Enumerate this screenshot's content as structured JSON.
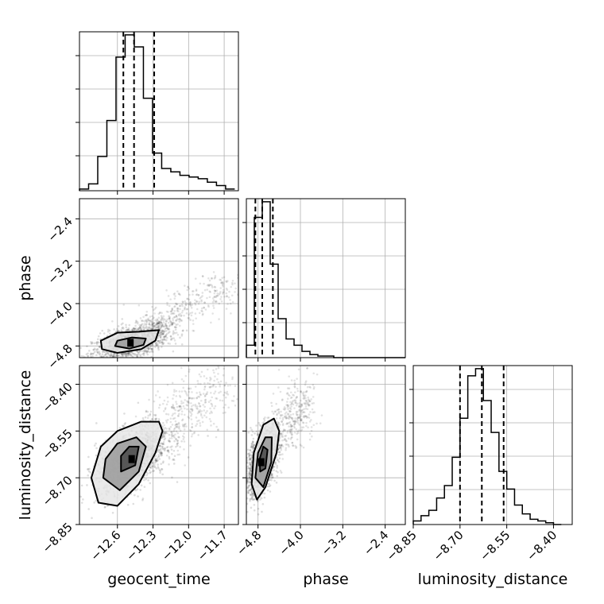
{
  "chart_data": {
    "type": "corner",
    "parameters": [
      "geocent_time",
      "phase",
      "luminosity_distance"
    ],
    "axis_labels": {
      "geocent_time": "geocent_time",
      "phase": "phase",
      "luminosity_distance": "luminosity_distance"
    },
    "ranges": {
      "geocent_time": [
        -12.92,
        -11.58
      ],
      "phase": [
        -5.02,
        -2.02
      ],
      "luminosity_distance": [
        -8.85,
        -8.34
      ]
    },
    "ticks": {
      "geocent_time": {
        "values": [
          -12.6,
          -12.3,
          -12.0,
          -11.7
        ],
        "labels": [
          "−12.6",
          "−12.3",
          "−12.0",
          "−11.7"
        ]
      },
      "phase": {
        "values": [
          -4.8,
          -4.0,
          -3.2,
          -2.4
        ],
        "labels": [
          "−4.8",
          "−4.0",
          "−3.2",
          "−2.4"
        ]
      },
      "luminosity_distance": {
        "values": [
          -8.85,
          -8.7,
          -8.55,
          -8.4
        ],
        "labels": [
          "−8.85",
          "−8.70",
          "−8.55",
          "−8.40"
        ]
      }
    },
    "grid": true,
    "histograms": [
      {
        "parameter": "geocent_time",
        "bin_edges": [
          -12.92,
          -12.843,
          -12.766,
          -12.689,
          -12.612,
          -12.535,
          -12.458,
          -12.381,
          -12.304,
          -12.227,
          -12.15,
          -12.073,
          -11.996,
          -11.919,
          -11.842,
          -11.765,
          -11.688,
          -11.611
        ],
        "counts": [
          1,
          4,
          20,
          41,
          78,
          91,
          84,
          54,
          22,
          13,
          11,
          9,
          8,
          7,
          5,
          3,
          1
        ],
        "quantiles": [
          -12.55,
          -12.46,
          -12.29
        ]
      },
      {
        "parameter": "phase",
        "bin_edges": [
          -5.02,
          -4.87,
          -4.72,
          -4.57,
          -4.42,
          -4.27,
          -4.12,
          -3.97,
          -3.82,
          -3.67,
          -3.52,
          -3.37,
          -3.22,
          -3.07,
          -2.92,
          -2.77,
          -2.62,
          -2.47,
          -2.32,
          -2.17,
          -2.02
        ],
        "counts": [
          8,
          90,
          100,
          60,
          25,
          12,
          8,
          4,
          2,
          1,
          1,
          0,
          0,
          0,
          0,
          0,
          0,
          0,
          0,
          0
        ],
        "quantiles": [
          -4.85,
          -4.72,
          -4.52
        ]
      },
      {
        "parameter": "luminosity_distance",
        "bin_edges": [
          -8.85,
          -8.825,
          -8.8,
          -8.775,
          -8.75,
          -8.725,
          -8.7,
          -8.675,
          -8.65,
          -8.625,
          -8.6,
          -8.575,
          -8.55,
          -8.525,
          -8.5,
          -8.475,
          -8.45,
          -8.425,
          -8.4,
          -8.375
        ],
        "counts": [
          2,
          5,
          8,
          15,
          22,
          38,
          60,
          84,
          88,
          70,
          52,
          30,
          20,
          11,
          6,
          3,
          2,
          1,
          0
        ],
        "quantiles": [
          -8.7,
          -8.63,
          -8.56
        ]
      }
    ],
    "pairs": [
      {
        "x_param": "geocent_time",
        "y_param": "phase",
        "center": [
          -12.49,
          -4.74
        ],
        "sigma": [
          0.16,
          0.18
        ],
        "correlation": 0.55,
        "tail_from": [
          -12.4,
          -4.6
        ],
        "tail_to": [
          -11.65,
          -3.6
        ],
        "contours": [
          [
            [
              -12.73,
              -4.86
            ],
            [
              -12.6,
              -4.93
            ],
            [
              -12.4,
              -4.86
            ],
            [
              -12.28,
              -4.7
            ],
            [
              -12.25,
              -4.5
            ],
            [
              -12.42,
              -4.53
            ],
            [
              -12.6,
              -4.55
            ],
            [
              -12.74,
              -4.7
            ]
          ],
          [
            [
              -12.62,
              -4.8
            ],
            [
              -12.5,
              -4.85
            ],
            [
              -12.38,
              -4.78
            ],
            [
              -12.36,
              -4.66
            ],
            [
              -12.48,
              -4.64
            ],
            [
              -12.6,
              -4.7
            ]
          ]
        ]
      },
      {
        "x_param": "geocent_time",
        "y_param": "luminosity_distance",
        "center": [
          -12.48,
          -8.64
        ],
        "sigma": [
          0.15,
          0.055
        ],
        "correlation": 0.5,
        "tail_from": [
          -12.35,
          -8.58
        ],
        "tail_to": [
          -11.7,
          -8.4
        ],
        "contours": [
          [
            [
              -12.82,
              -8.7
            ],
            [
              -12.76,
              -8.78
            ],
            [
              -12.6,
              -8.79
            ],
            [
              -12.42,
              -8.72
            ],
            [
              -12.28,
              -8.62
            ],
            [
              -12.22,
              -8.55
            ],
            [
              -12.25,
              -8.52
            ],
            [
              -12.4,
              -8.52
            ],
            [
              -12.6,
              -8.55
            ],
            [
              -12.74,
              -8.6
            ]
          ],
          [
            [
              -12.72,
              -8.7
            ],
            [
              -12.58,
              -8.74
            ],
            [
              -12.42,
              -8.68
            ],
            [
              -12.36,
              -8.6
            ],
            [
              -12.44,
              -8.57
            ],
            [
              -12.6,
              -8.59
            ],
            [
              -12.7,
              -8.64
            ]
          ],
          [
            [
              -12.57,
              -8.68
            ],
            [
              -12.45,
              -8.66
            ],
            [
              -12.42,
              -8.6
            ],
            [
              -12.5,
              -8.6
            ],
            [
              -12.57,
              -8.63
            ]
          ]
        ]
      },
      {
        "x_param": "phase",
        "y_param": "luminosity_distance",
        "center": [
          -4.74,
          -8.65
        ],
        "sigma": [
          0.16,
          0.055
        ],
        "correlation": 0.5,
        "tail_from": [
          -4.6,
          -8.58
        ],
        "tail_to": [
          -3.8,
          -8.45
        ],
        "contours": [
          [
            [
              -4.92,
              -8.72
            ],
            [
              -4.82,
              -8.77
            ],
            [
              -4.66,
              -8.73
            ],
            [
              -4.45,
              -8.62
            ],
            [
              -4.4,
              -8.55
            ],
            [
              -4.5,
              -8.51
            ],
            [
              -4.7,
              -8.53
            ],
            [
              -4.88,
              -8.62
            ]
          ],
          [
            [
              -4.85,
              -8.7
            ],
            [
              -4.7,
              -8.73
            ],
            [
              -4.55,
              -8.65
            ],
            [
              -4.54,
              -8.57
            ],
            [
              -4.66,
              -8.57
            ],
            [
              -4.8,
              -8.62
            ]
          ],
          [
            [
              -4.76,
              -8.68
            ],
            [
              -4.66,
              -8.67
            ],
            [
              -4.62,
              -8.61
            ],
            [
              -4.7,
              -8.6
            ],
            [
              -4.77,
              -8.64
            ]
          ]
        ]
      }
    ]
  }
}
